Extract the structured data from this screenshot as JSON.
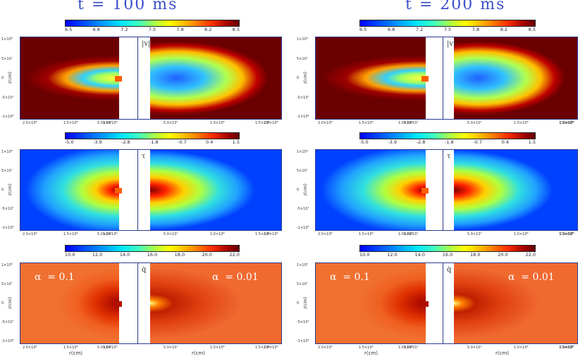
{
  "titles": [
    "t = 100 ms",
    "t = 200 ms"
  ],
  "colorbars": {
    "velocity": [
      "6.5",
      "6.8",
      "7.2",
      "7.5",
      "7.8",
      "8.2",
      "8.5"
    ],
    "tau": [
      "-5.0",
      "-3.9",
      "-2.8",
      "-1.8",
      "-0.7",
      "0.4",
      "1.5"
    ],
    "qdot": [
      "10.0",
      "12.0",
      "14.0",
      "16.0",
      "18.0",
      "20.0",
      "22.0"
    ]
  },
  "panel_labels": {
    "velocity": "|v|",
    "tau": "τ",
    "qdot": "q̇"
  },
  "alpha_left": "α  = 0.1",
  "alpha_right": "α  = 0.01",
  "y_axis_label": "z(cm)",
  "x_axis_label": "r(cm)",
  "y_ticks": [
    "1×10⁸",
    "5×10⁷",
    "0",
    "-5×10⁷",
    "-1×10⁸"
  ],
  "x_ticks_left": [
    "2.0×10⁸",
    "1.5×10⁸",
    "1.0×10⁸",
    "5.0×10⁷"
  ],
  "x_ticks_right": [
    "5.0×10⁷",
    "1.0×10⁸",
    "1.5×10⁸",
    "2.0×10⁸"
  ],
  "colors": {
    "title": "#3b4fc9",
    "frame": "#2a3a90"
  }
}
